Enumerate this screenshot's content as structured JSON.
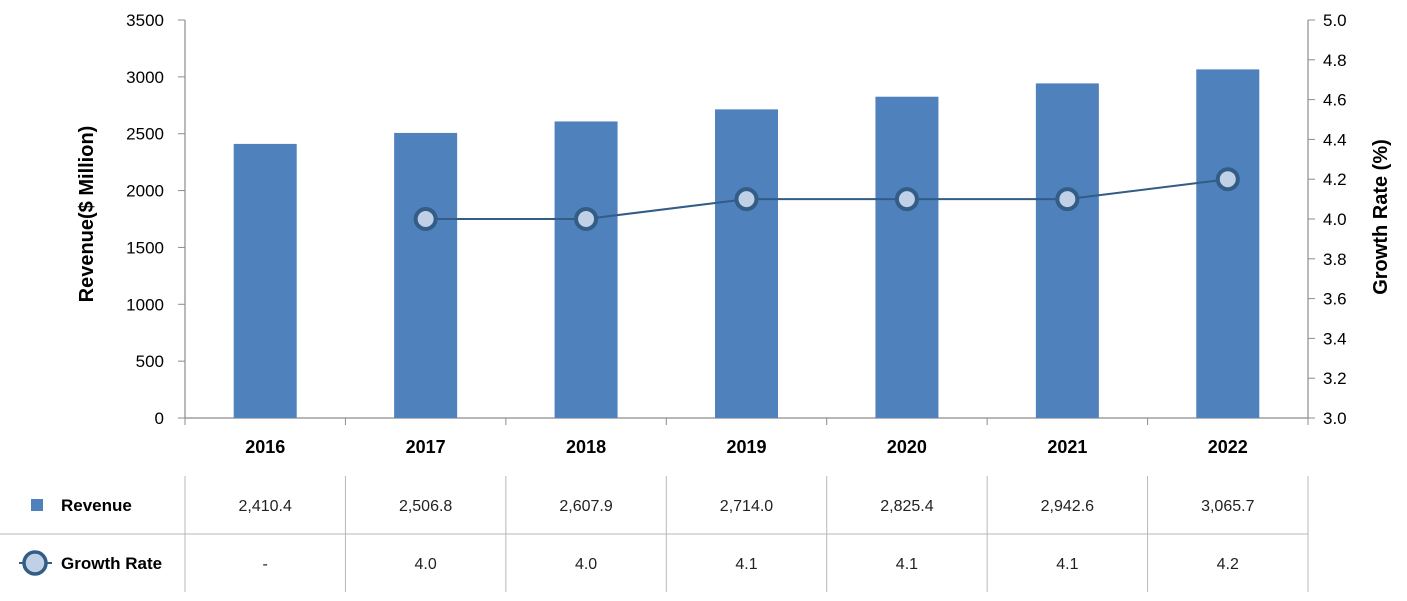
{
  "colors": {
    "bar": "#4f81bd",
    "line": "#335c86",
    "marker_fill": "#c0d0e6",
    "axis": "#8c8c8c",
    "grid": "#b8b8b8",
    "text": "#000000"
  },
  "chart_data": {
    "type": "bar",
    "categories": [
      "2016",
      "2017",
      "2018",
      "2019",
      "2020",
      "2021",
      "2022"
    ],
    "series": [
      {
        "name": "Revenue",
        "type": "bar",
        "axis": "left",
        "values": [
          2410.4,
          2506.8,
          2607.9,
          2714.0,
          2825.4,
          2942.6,
          3065.7
        ]
      },
      {
        "name": "Growth Rate",
        "type": "line",
        "axis": "right",
        "values": [
          null,
          4.0,
          4.0,
          4.1,
          4.1,
          4.1,
          4.2
        ]
      }
    ],
    "ylabel": "Revenue($ Million)",
    "y2label": "Growth Rate (%)",
    "ylim": [
      0,
      3500
    ],
    "y2lim": [
      3.0,
      5.0
    ],
    "yticks": [
      "0",
      "500",
      "1000",
      "1500",
      "2000",
      "2500",
      "3000",
      "3500"
    ],
    "y2ticks": [
      "3.0",
      "3.2",
      "3.4",
      "3.6",
      "3.8",
      "4.0",
      "4.2",
      "4.4",
      "4.6",
      "4.8",
      "5.0"
    ],
    "grid": false,
    "data_table": {
      "rows": [
        {
          "label": "Revenue",
          "cells": [
            "2,410.4",
            "2,506.8",
            "2,607.9",
            "2,714.0",
            "2,825.4",
            "2,942.6",
            "3,065.7"
          ]
        },
        {
          "label": "Growth Rate",
          "cells": [
            "-",
            "4.0",
            "4.0",
            "4.1",
            "4.1",
            "4.1",
            "4.2"
          ]
        }
      ]
    }
  }
}
